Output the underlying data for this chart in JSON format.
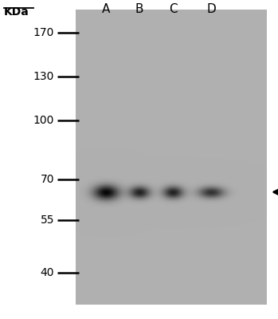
{
  "background_color": "#ffffff",
  "gel_bg_color": "#b0b0b0",
  "ladder_labels": [
    "170",
    "130",
    "100",
    "70",
    "55",
    "40"
  ],
  "ladder_kda": [
    170,
    130,
    100,
    70,
    55,
    40
  ],
  "kda_label": "KDa",
  "lane_labels": [
    "A",
    "B",
    "C",
    "D"
  ],
  "band_kda": 65,
  "arrow_kda": 65,
  "fig_width": 3.49,
  "fig_height": 4.0,
  "dpi": 100,
  "kda_min": 33,
  "kda_max": 195
}
